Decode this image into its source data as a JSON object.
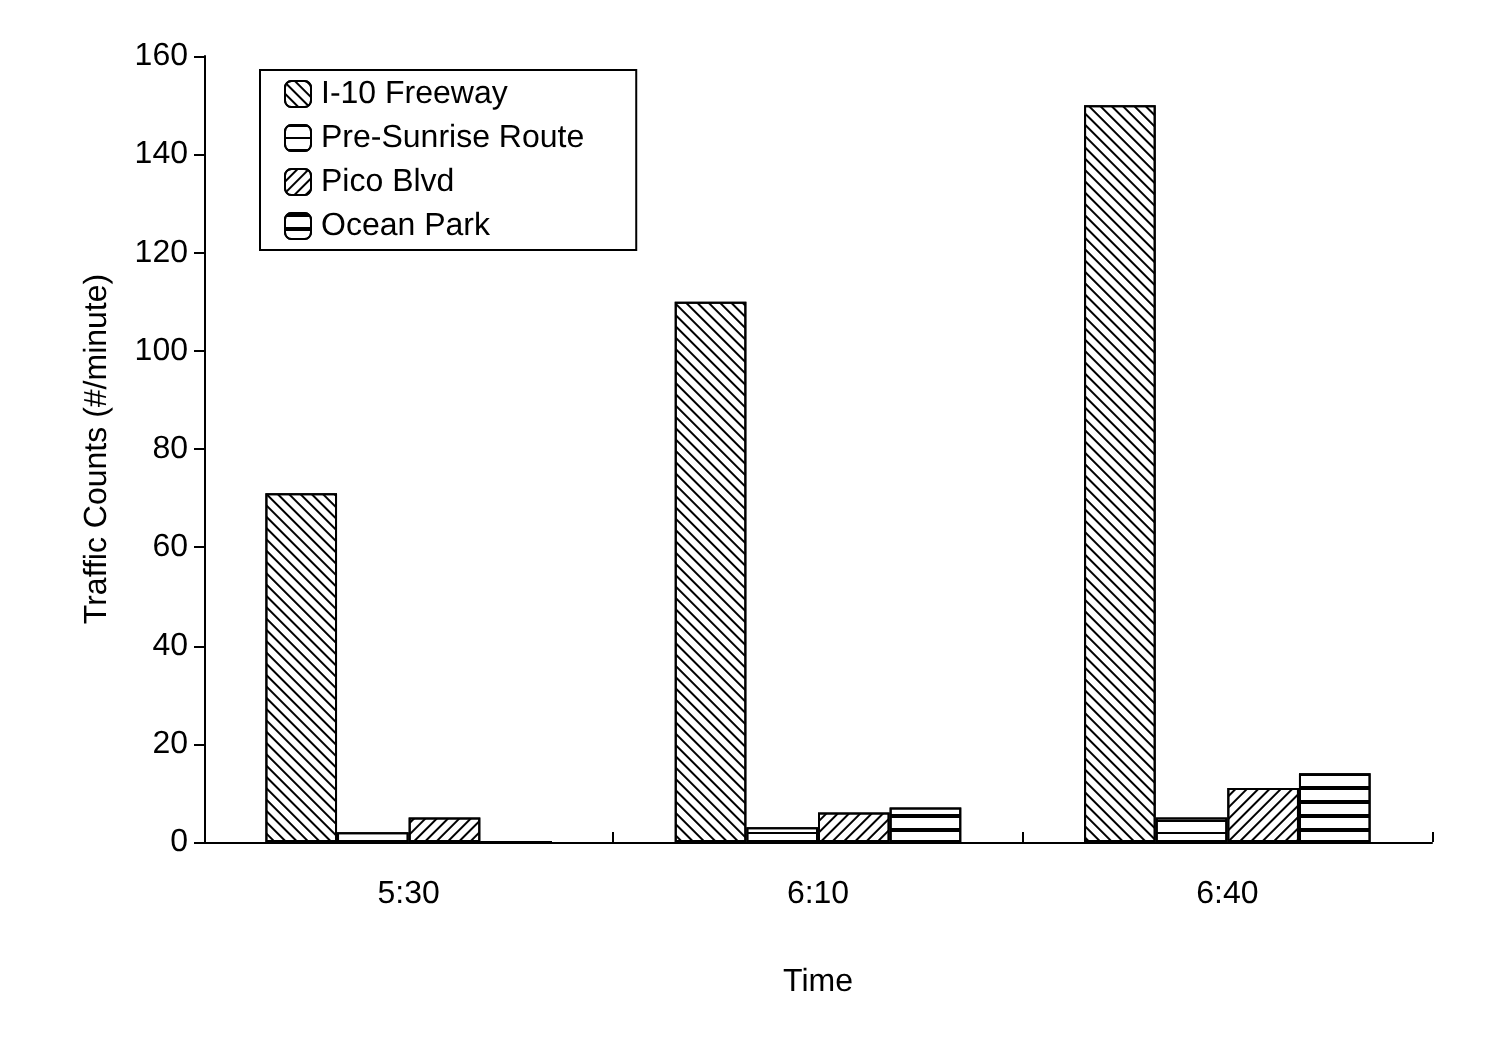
{
  "chart_data": {
    "type": "bar",
    "xlabel": "Time",
    "ylabel": "Traffic Counts (#/minute)",
    "categories": [
      "5:30",
      "6:10",
      "6:40"
    ],
    "series": [
      {
        "name": "I-10 Freeway",
        "color": "#ffffff",
        "values": [
          71,
          110,
          150
        ]
      },
      {
        "name": "Pre-Sunrise Route",
        "color": "#ffffff",
        "values": [
          2,
          3,
          5
        ]
      },
      {
        "name": "Pico Blvd",
        "color": "#ffffff",
        "values": [
          5,
          6,
          11
        ]
      },
      {
        "name": "Ocean Park",
        "color": "#ffffff",
        "values": [
          0,
          7,
          14
        ]
      }
    ],
    "ylim": [
      0,
      160
    ],
    "yticks": [
      0,
      20,
      40,
      60,
      80,
      100,
      120,
      140,
      160
    ],
    "grid": false,
    "legend": "top left"
  }
}
